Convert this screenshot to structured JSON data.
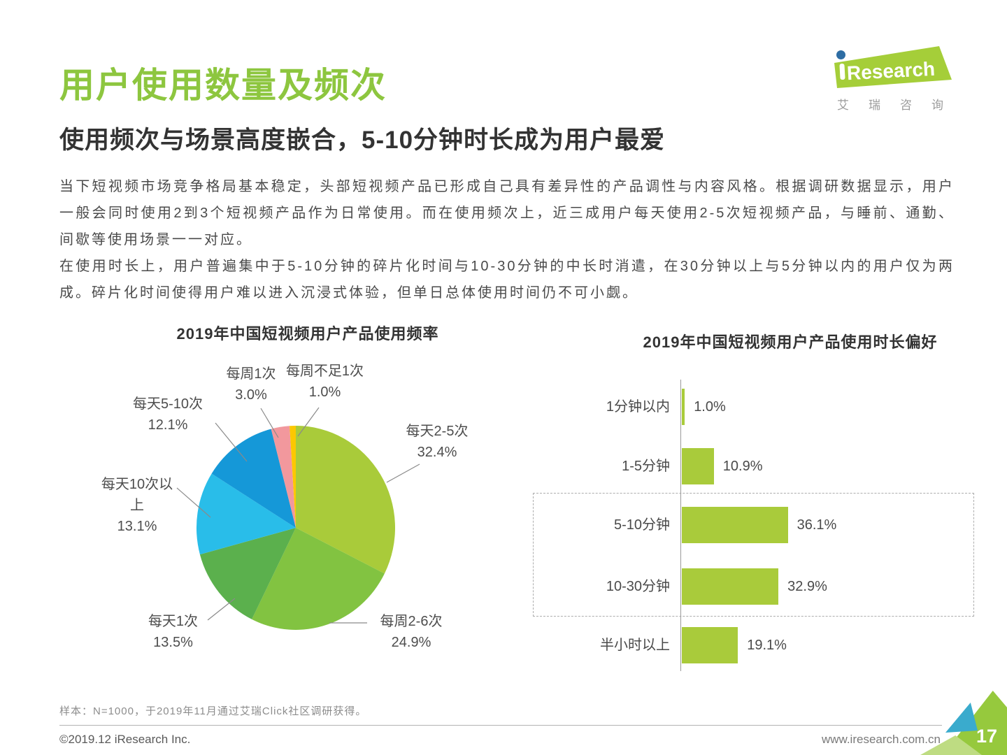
{
  "header": {
    "title": "用户使用数量及频次",
    "subtitle": "使用频次与场景高度嵌合，5-10分钟时长成为用户最爱",
    "paragraph1": "当下短视频市场竞争格局基本稳定，头部短视频产品已形成自己具有差异性的产品调性与内容风格。根据调研数据显示，用户一般会同时使用2到3个短视频产品作为日常使用。而在使用频次上，近三成用户每天使用2-5次短视频产品，与睡前、通勤、间歇等使用场景一一对应。",
    "paragraph2": "在使用时长上，用户普遍集中于5-10分钟的碎片化时间与10-30分钟的中长时消遣，在30分钟以上与5分钟以内的用户仅为两成。碎片化时间使得用户难以进入沉浸式体验，但单日总体使用时间仍不可小觑。"
  },
  "logo": {
    "wordmark_prefix": "i",
    "wordmark": "Research",
    "chinese": "艾瑞咨询"
  },
  "chart_data": [
    {
      "type": "pie",
      "title": "2019年中国短视频用户产品使用频率",
      "start_angle_deg": 0,
      "direction": "clockwise",
      "slices": [
        {
          "label": "每天2-5次",
          "value": 32.4,
          "pct": "32.4%",
          "color": "#a9cb3a"
        },
        {
          "label": "每周2-6次",
          "value": 24.9,
          "pct": "24.9%",
          "color": "#82c341"
        },
        {
          "label": "每天1次",
          "value": 13.5,
          "pct": "13.5%",
          "color": "#5bb04d"
        },
        {
          "label": "每天10次以上",
          "value": 13.1,
          "pct": "13.1%",
          "color": "#29bde9"
        },
        {
          "label": "每天5-10次",
          "value": 12.1,
          "pct": "12.1%",
          "color": "#1598d8"
        },
        {
          "label": "每周1次",
          "value": 3.0,
          "pct": "3.0%",
          "color": "#f2989d"
        },
        {
          "label": "每周不足1次",
          "value": 1.0,
          "pct": "1.0%",
          "color": "#fcc800"
        }
      ]
    },
    {
      "type": "bar",
      "orientation": "horizontal",
      "title": "2019年中国短视频用户产品使用时长偏好",
      "categories": [
        "1分钟以内",
        "1-5分钟",
        "5-10分钟",
        "10-30分钟",
        "半小时以上"
      ],
      "values": [
        1.0,
        10.9,
        36.1,
        32.9,
        19.1
      ],
      "value_labels": [
        "1.0%",
        "10.9%",
        "36.1%",
        "32.9%",
        "19.1%"
      ],
      "bar_color": "#a9cb3b",
      "highlighted_categories": [
        "5-10分钟",
        "10-30分钟"
      ],
      "xlim": [
        0,
        40
      ],
      "grid": false,
      "legend": "none"
    }
  ],
  "footer": {
    "note": "样本：N=1000，于2019年11月通过艾瑞Click社区调研获得。",
    "copyright": "©2019.12 iResearch Inc.",
    "website": "www.iresearch.com.cn",
    "page_number": "17"
  }
}
